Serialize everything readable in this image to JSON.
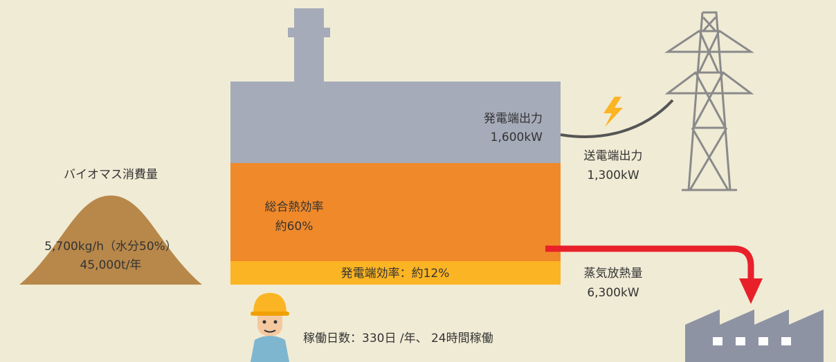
{
  "biomass": {
    "title": "バイオマス消費量",
    "rate": "5,700kg/h（水分50%）",
    "annual": "45,000t/年"
  },
  "plant": {
    "generator_output_label": "発電端出力",
    "generator_output_value": "1,600kW",
    "total_efficiency_label": "総合熱効率",
    "total_efficiency_value": "約60%",
    "generation_efficiency": "発電端効率：約12%"
  },
  "transmission": {
    "label": "送電端出力",
    "value": "1,300kW"
  },
  "steam": {
    "label": "蒸気放熱量",
    "value": "6,300kW"
  },
  "operation": "稼働日数：330日 /年、 24時間稼働"
}
